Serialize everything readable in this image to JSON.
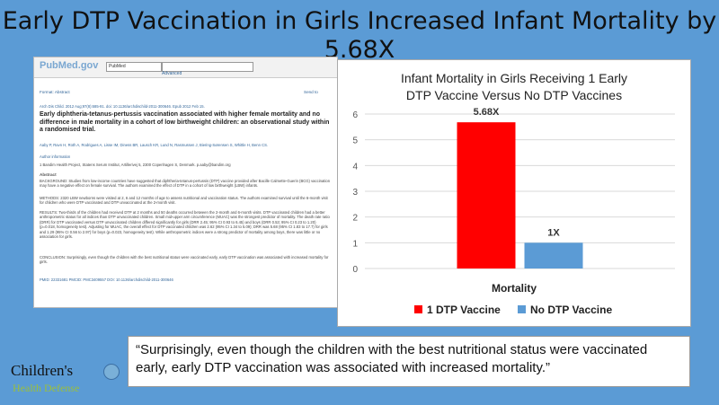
{
  "page": {
    "title_line1": "Early DTP Vaccination in Girls Increased Infant Mortality by",
    "title_line2": "5.68X"
  },
  "paper": {
    "pubmed_logo": "PubMed",
    "pubmed_logo_suffix": ".gov",
    "select_value": "PubMed",
    "advanced_label": "Advanced",
    "format_label": "Format: Abstract",
    "send_to": "Send to",
    "citation": "Arch Dis Child. 2012 Aug;97(8):685-91. doi: 10.1136/archdischild-2011-300646. Epub 2012 Feb 15.",
    "article_title": "Early diphtheria-tetanus-pertussis vaccination associated with higher female mortality and no difference in male mortality in a cohort of low birthweight children: an observational study within a randomised trial.",
    "authors": "Aaby P, Ravn H, Roth A, Rodrigues A, Lisse IM, Diness BR, Lausch KR, Lund N, Rasmussen J, Biering-Sørensen S, Whittle H, Benn CS.",
    "author_info_label": "Author information",
    "affiliation": "1  Bandim Health Project, Statens Serum Institut, Artillerivej 5, 2300 Copenhagen S, Denmark. p.aaby@bandim.org",
    "abstract_label": "Abstract",
    "background": "BACKGROUND: Studies from low-income countries have suggested that diphtheria-tetanus-pertussis (DTP) vaccine provided after Bacille Calmette-Guerin (BCG) vaccination may have a negative effect on female survival. The authors examined the effect of DTP in a cohort of low birthweight (LBW) infants.",
    "methods": "METHODS: 2320 LBW newborns were visited at 2, 6 and 12 months of age to assess nutritional and vaccination status. The authors examined survival until the 6-month visit for children who were DTP vaccinated and DTP unvaccinated at the 2-month visit.",
    "results": "RESULTS: Two-thirds of the children had received DTP at 2 months and 50 deaths occurred between the 2-month and 6-month visits. DTP vaccinated children had a better anthropometric status for all indices than DTP unvaccinated children. Small mid-upper arm circumference (MUAC) was the strongest predictor of mortality. The death rate ratio (DRR) for DTP vaccinated versus DTP unvaccinated children differed significantly for girls (DRR 2.45; 95% CI 0.93 to 6.45) and boys (DRR 0.53; 95% CI 0.23 to 1.20) (p=0.018, homogeneity test). Adjusting for MUAC, the overall effect for DTP vaccinated children was 2.62 (95% CI 1.34 to 5.09); DRR was 5.68 (95% CI 1.83 to 17.7) for girls and 1.29 (95% CI 0.56 to 2.97) for boys (p=0.023, homogeneity test). While anthropometric indices were a strong predictor of mortality among boys, there was little or no association for girls.",
    "conclusion": "CONCLUSION: Surprisingly, even though the children with the best nutritional status were vaccinated early, early DTP vaccination was associated with increased mortality for girls.",
    "ids": "PMID: 22331681   PMCID: PMC3409557   DOI: 10.1136/archdischild-2011-300646"
  },
  "chart_data": {
    "type": "bar",
    "title_line1": "Infant Mortality in Girls Receiving 1 Early",
    "title_line2": "DTP Vaccine Versus No DTP Vaccines",
    "categories": [
      "Mortality"
    ],
    "xlabel": "Mortality",
    "ylim": [
      0,
      6
    ],
    "yticks": [
      0,
      1,
      2,
      3,
      4,
      5,
      6
    ],
    "grid": true,
    "legend_position": "bottom",
    "series": [
      {
        "name": "1 DTP Vaccine",
        "values": [
          5.68
        ],
        "label": "5.68X",
        "color": "#ff0000"
      },
      {
        "name": "No DTP Vaccine",
        "values": [
          1
        ],
        "label": "1X",
        "color": "#5b9bd5"
      }
    ]
  },
  "quote": {
    "text_line1": "“Surprisingly, even though the children with the best nutritional status were vaccinated",
    "text_line2": "early, early DTP vaccination was associated with increased mortality.”"
  },
  "logo": {
    "line1": "Children's",
    "line2": "Health Defense",
    "icon": "globe-hands-icon"
  }
}
